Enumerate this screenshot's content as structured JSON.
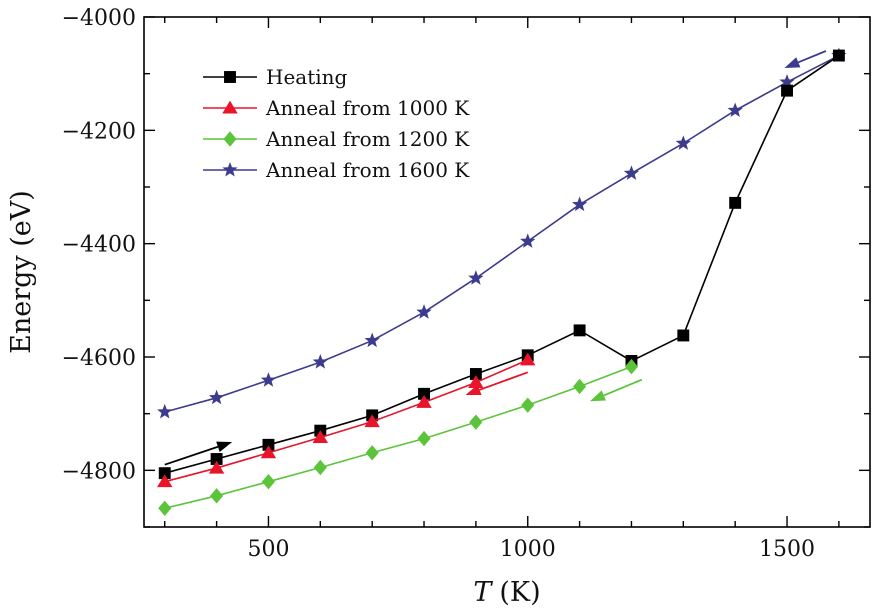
{
  "chart_data": {
    "type": "line",
    "x": [
      300,
      400,
      500,
      600,
      700,
      800,
      900,
      1000,
      1100,
      1200,
      1300,
      1400,
      1500,
      1600
    ],
    "xlabel_var": "T",
    "xlabel_unit": "(K)",
    "ylabel": "Energy (eV)",
    "xlim": [
      260,
      1660
    ],
    "ylim": [
      -4900,
      -4000
    ],
    "xticks": [
      500,
      1000,
      1500
    ],
    "yticks": [
      -4800,
      -4600,
      -4400,
      -4200,
      -4000
    ],
    "grid": false,
    "legend_position": "top-left",
    "series": [
      {
        "name": "Heating",
        "color": "#000000",
        "marker": "square",
        "x": [
          300,
          400,
          500,
          600,
          700,
          800,
          900,
          1000,
          1100,
          1200,
          1300,
          1400,
          1500,
          1600
        ],
        "values": [
          -4805,
          -4780,
          -4755,
          -4730,
          -4703,
          -4665,
          -4630,
          -4597,
          -4553,
          -4607,
          -4562,
          -4328,
          -4130,
          -4068
        ]
      },
      {
        "name": "Anneal from 1000 K",
        "color": "#e8142a",
        "marker": "triangle",
        "x": [
          300,
          400,
          500,
          600,
          700,
          800,
          900,
          1000
        ],
        "values": [
          -4820,
          -4796,
          -4769,
          -4742,
          -4714,
          -4680,
          -4645,
          -4605
        ]
      },
      {
        "name": "Anneal from 1200 K",
        "color": "#5cc43a",
        "marker": "diamond",
        "x": [
          300,
          400,
          500,
          600,
          700,
          800,
          900,
          1000,
          1100,
          1200
        ],
        "values": [
          -4867,
          -4845,
          -4820,
          -4795,
          -4769,
          -4744,
          -4715,
          -4685,
          -4652,
          -4617
        ]
      },
      {
        "name": "Anneal from 1600 K",
        "color": "#3d3b8e",
        "marker": "star",
        "x": [
          300,
          400,
          500,
          600,
          700,
          800,
          900,
          1000,
          1100,
          1200,
          1300,
          1400,
          1500,
          1600
        ],
        "values": [
          -4697,
          -4672,
          -4641,
          -4609,
          -4571,
          -4521,
          -4461,
          -4396,
          -4331,
          -4276,
          -4223,
          -4165,
          -4115,
          -4068
        ]
      }
    ],
    "arrows": [
      {
        "color": "#000000",
        "from": [
          300,
          -4790
        ],
        "to": [
          430,
          -4750
        ]
      },
      {
        "color": "#e8142a",
        "from": [
          1000,
          -4627
        ],
        "to": [
          880,
          -4667
        ]
      },
      {
        "color": "#5cc43a",
        "from": [
          1220,
          -4640
        ],
        "to": [
          1120,
          -4678
        ]
      },
      {
        "color": "#3d3b8e",
        "from": [
          1575,
          -4060
        ],
        "to": [
          1495,
          -4090
        ]
      }
    ]
  }
}
